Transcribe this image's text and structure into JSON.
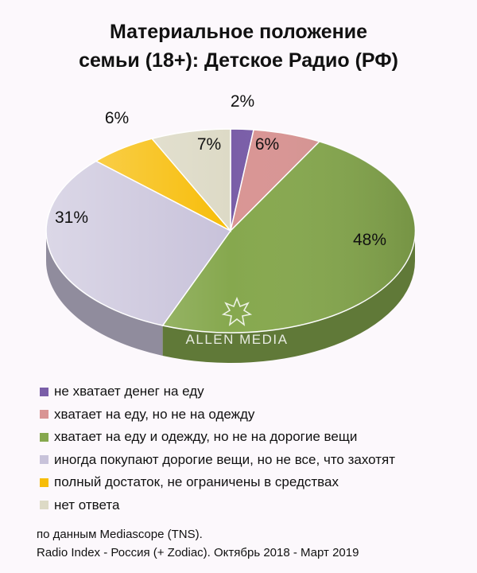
{
  "title": {
    "line1": "Материальное положение",
    "line2": "семьи (18+): Детское Радио (РФ)"
  },
  "chart_data": {
    "type": "pie",
    "title": "Материальное положение семьи (18+): Детское Радио (РФ)",
    "slices": [
      {
        "label": "не хватает денег на еду",
        "value": 2,
        "color": "#7a5ea8"
      },
      {
        "label": "хватает на еду, но не на одежду",
        "value": 6,
        "color": "#d99594"
      },
      {
        "label": "хватает на еду и одежду, но не на дорогие вещи",
        "value": 48,
        "color": "#86a84e"
      },
      {
        "label": "иногда покупают дорогие вещи, но не все, что захотят",
        "value": 31,
        "color": "#c8c2da"
      },
      {
        "label": "полный достаток, не ограничены в средствах",
        "value": 6,
        "color": "#f7bd08"
      },
      {
        "label": "нет ответа",
        "value": 7,
        "color": "#dddac6"
      }
    ],
    "value_suffix": "%",
    "legend_position": "bottom"
  },
  "watermark": {
    "text": "ALLEN MEDIA",
    "icon": "star-burst-logo"
  },
  "source": {
    "line1": "по данным Mediascope (TNS).",
    "line2": "Radio Index - Россия (+ Zodiac). Октябрь 2018 - Март 2019"
  }
}
